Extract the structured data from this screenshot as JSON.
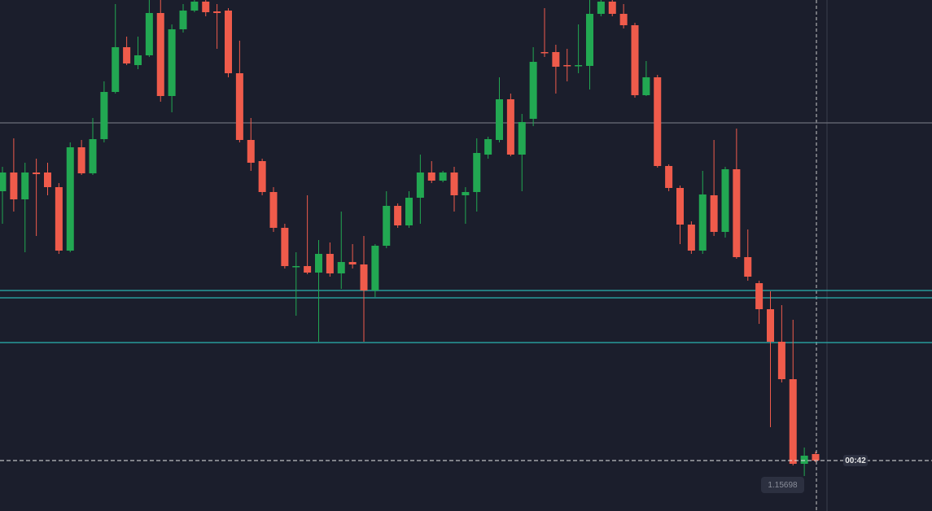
{
  "chart_data": {
    "type": "candlestick",
    "ylim": [
      1.15636,
      1.16264
    ],
    "up_color": "#22a852",
    "down_color": "#ef5b4b",
    "candles": [
      [
        1.16029,
        1.16059,
        1.15989,
        1.16052
      ],
      [
        1.16052,
        1.16094,
        1.16004,
        1.16019
      ],
      [
        1.16019,
        1.16064,
        1.15954,
        1.16052
      ],
      [
        1.16052,
        1.16069,
        1.15974,
        1.1605
      ],
      [
        1.16052,
        1.16064,
        1.16024,
        1.16034
      ],
      [
        1.16034,
        1.16039,
        1.15952,
        1.15956
      ],
      [
        1.15956,
        1.16089,
        1.15954,
        1.16083
      ],
      [
        1.16083,
        1.16092,
        1.16049,
        1.16051
      ],
      [
        1.16051,
        1.16119,
        1.16049,
        1.16093
      ],
      [
        1.16093,
        1.16164,
        1.16089,
        1.16151
      ],
      [
        1.16151,
        1.16259,
        1.16149,
        1.16206
      ],
      [
        1.16206,
        1.16219,
        1.16184,
        1.16186
      ],
      [
        1.16184,
        1.16219,
        1.16179,
        1.16196
      ],
      [
        1.16196,
        1.16264,
        1.16194,
        1.16248
      ],
      [
        1.16248,
        1.16264,
        1.16139,
        1.16146
      ],
      [
        1.16146,
        1.16234,
        1.16126,
        1.16228
      ],
      [
        1.16228,
        1.16259,
        1.16224,
        1.16251
      ],
      [
        1.16251,
        1.16264,
        1.16249,
        1.16262
      ],
      [
        1.16262,
        1.16264,
        1.16244,
        1.16249
      ],
      [
        1.1625,
        1.16259,
        1.16204,
        1.16248
      ],
      [
        1.16251,
        1.16254,
        1.16169,
        1.16174
      ],
      [
        1.16174,
        1.16214,
        1.16089,
        1.16092
      ],
      [
        1.16092,
        1.16119,
        1.16054,
        1.16064
      ],
      [
        1.16066,
        1.16069,
        1.16024,
        1.16028
      ],
      [
        1.16028,
        1.16034,
        1.15979,
        1.15984
      ],
      [
        1.15984,
        1.15989,
        1.15934,
        1.15937
      ],
      [
        1.15937,
        1.15954,
        1.15876,
        1.15937
      ],
      [
        1.15937,
        1.16024,
        1.15927,
        1.15929
      ],
      [
        1.15929,
        1.15969,
        1.15844,
        1.15952
      ],
      [
        1.15952,
        1.15966,
        1.15924,
        1.15928
      ],
      [
        1.15928,
        1.16004,
        1.15909,
        1.15942
      ],
      [
        1.15942,
        1.15964,
        1.15934,
        1.15939
      ],
      [
        1.15939,
        1.15974,
        1.15844,
        1.15907
      ],
      [
        1.15907,
        1.15964,
        1.15899,
        1.15962
      ],
      [
        1.15962,
        1.16029,
        1.15959,
        1.16011
      ],
      [
        1.16011,
        1.16014,
        1.15984,
        1.15987
      ],
      [
        1.15987,
        1.16029,
        1.15984,
        1.16021
      ],
      [
        1.16021,
        1.16074,
        1.15989,
        1.16052
      ],
      [
        1.16052,
        1.16066,
        1.16039,
        1.16042
      ],
      [
        1.16042,
        1.16054,
        1.1604,
        1.16052
      ],
      [
        1.16052,
        1.16059,
        1.16004,
        1.16024
      ],
      [
        1.16024,
        1.16034,
        1.15989,
        1.16028
      ],
      [
        1.16028,
        1.16094,
        1.16004,
        1.16076
      ],
      [
        1.16074,
        1.16096,
        1.16069,
        1.16093
      ],
      [
        1.16092,
        1.16169,
        1.16089,
        1.16142
      ],
      [
        1.16142,
        1.16149,
        1.16072,
        1.16074
      ],
      [
        1.16074,
        1.16124,
        1.16029,
        1.16114
      ],
      [
        1.16118,
        1.16206,
        1.16109,
        1.16188
      ],
      [
        1.162,
        1.16254,
        1.16194,
        1.16199
      ],
      [
        1.162,
        1.16209,
        1.16149,
        1.16182
      ],
      [
        1.16184,
        1.16204,
        1.16164,
        1.16183
      ],
      [
        1.16184,
        1.16234,
        1.16174,
        1.16184
      ],
      [
        1.16183,
        1.16264,
        1.16154,
        1.16247
      ],
      [
        1.16247,
        1.16264,
        1.16244,
        1.16262
      ],
      [
        1.16262,
        1.16264,
        1.16244,
        1.16247
      ],
      [
        1.16247,
        1.16259,
        1.16229,
        1.16233
      ],
      [
        1.16233,
        1.16236,
        1.16144,
        1.16147
      ],
      [
        1.16147,
        1.16189,
        1.16146,
        1.16169
      ],
      [
        1.16169,
        1.16172,
        1.16058,
        1.1606
      ],
      [
        1.1606,
        1.16062,
        1.16029,
        1.16033
      ],
      [
        1.16033,
        1.16036,
        1.15964,
        1.15988
      ],
      [
        1.15988,
        1.15992,
        1.15952,
        1.15956
      ],
      [
        1.15956,
        1.16054,
        1.15952,
        1.16025
      ],
      [
        1.16024,
        1.16092,
        1.15974,
        1.15979
      ],
      [
        1.15979,
        1.16059,
        1.15972,
        1.16056
      ],
      [
        1.16056,
        1.16106,
        1.15946,
        1.15948
      ],
      [
        1.15948,
        1.15982,
        1.15919,
        1.15924
      ],
      [
        1.15916,
        1.15919,
        1.15866,
        1.15884
      ],
      [
        1.15884,
        1.15906,
        1.15739,
        1.15844
      ],
      [
        1.15844,
        1.15889,
        1.15794,
        1.15798
      ],
      [
        1.15798,
        1.15871,
        1.15692,
        1.15694
      ],
      [
        1.15694,
        1.15714,
        1.15679,
        1.15704
      ],
      [
        1.15706,
        1.15709,
        1.15696,
        1.15698
      ]
    ],
    "levels": [
      {
        "value": 1.16113,
        "color": "#6b6f7a"
      },
      {
        "value": 1.15907,
        "color": "#2bb3b0"
      },
      {
        "value": 1.15898,
        "color": "#2bb3b0"
      },
      {
        "value": 1.15843,
        "color": "#2bb3b0"
      }
    ],
    "last_price": 1.15698,
    "timer": "00:42"
  }
}
